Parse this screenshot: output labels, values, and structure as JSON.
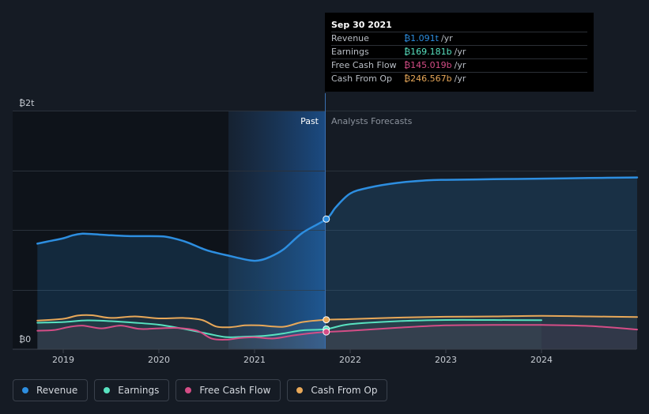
{
  "chart_data": {
    "type": "area",
    "y_axis_labels": {
      "top": "₿2t",
      "bottom": "₿0"
    },
    "ylim": [
      0,
      2.0
    ],
    "x_ticks": [
      "2019",
      "2020",
      "2021",
      "2022",
      "2023",
      "2024"
    ],
    "region_labels": {
      "past": "Past",
      "forecast": "Analysts Forecasts"
    },
    "past_end": 2021.75,
    "series": [
      {
        "name": "Revenue",
        "key": "revenue",
        "color": "#2d8ee0",
        "x": [
          2018.73,
          2018.85,
          2019.0,
          2019.1,
          2019.2,
          2019.3,
          2019.5,
          2019.7,
          2019.9,
          2020.05,
          2020.15,
          2020.3,
          2020.5,
          2020.75,
          2020.95,
          2021.05,
          2021.15,
          2021.3,
          2021.5,
          2021.75,
          2021.85,
          2022.0,
          2022.2,
          2022.5,
          2022.8,
          2023.0,
          2023.5,
          2024.0,
          2024.5,
          2025.0
        ],
        "y": [
          0.885,
          0.905,
          0.93,
          0.955,
          0.968,
          0.965,
          0.955,
          0.948,
          0.948,
          0.945,
          0.93,
          0.895,
          0.83,
          0.78,
          0.745,
          0.745,
          0.77,
          0.835,
          0.975,
          1.091,
          1.19,
          1.305,
          1.355,
          1.395,
          1.415,
          1.42,
          1.425,
          1.43,
          1.435,
          1.44
        ]
      },
      {
        "name": "Earnings",
        "key": "earnings",
        "color": "#58e2c0",
        "x": [
          2018.73,
          2019.0,
          2019.25,
          2019.5,
          2019.75,
          2020.0,
          2020.25,
          2020.5,
          2020.7,
          2020.9,
          2021.1,
          2021.3,
          2021.5,
          2021.75,
          2022.0,
          2022.5,
          2023.0,
          2023.5,
          2024.0
        ],
        "y": [
          0.222,
          0.228,
          0.242,
          0.235,
          0.222,
          0.205,
          0.172,
          0.132,
          0.102,
          0.105,
          0.112,
          0.132,
          0.158,
          0.169,
          0.21,
          0.235,
          0.245,
          0.245,
          0.243
        ]
      },
      {
        "name": "Free Cash Flow",
        "key": "fcf",
        "color": "#d44d86",
        "x": [
          2018.73,
          2018.9,
          2019.05,
          2019.2,
          2019.4,
          2019.6,
          2019.8,
          2020.0,
          2020.2,
          2020.4,
          2020.55,
          2020.7,
          2020.85,
          2021.0,
          2021.2,
          2021.4,
          2021.6,
          2021.75,
          2022.0,
          2022.5,
          2023.0,
          2023.5,
          2024.0,
          2024.5,
          2025.0
        ],
        "y": [
          0.155,
          0.16,
          0.185,
          0.198,
          0.175,
          0.198,
          0.17,
          0.175,
          0.178,
          0.155,
          0.09,
          0.08,
          0.095,
          0.1,
          0.09,
          0.115,
          0.135,
          0.145,
          0.155,
          0.18,
          0.2,
          0.203,
          0.203,
          0.195,
          0.165
        ]
      },
      {
        "name": "Cash From Op",
        "key": "cfo",
        "color": "#e8a859",
        "x": [
          2018.73,
          2019.0,
          2019.15,
          2019.3,
          2019.5,
          2019.75,
          2020.0,
          2020.25,
          2020.45,
          2020.6,
          2020.75,
          2020.9,
          2021.05,
          2021.3,
          2021.5,
          2021.75,
          2022.0,
          2022.5,
          2023.0,
          2023.5,
          2024.0,
          2024.5,
          2025.0
        ],
        "y": [
          0.24,
          0.255,
          0.282,
          0.285,
          0.262,
          0.275,
          0.258,
          0.262,
          0.245,
          0.19,
          0.185,
          0.2,
          0.2,
          0.188,
          0.228,
          0.247,
          0.252,
          0.265,
          0.272,
          0.275,
          0.28,
          0.275,
          0.27
        ]
      }
    ],
    "tooltip": {
      "date": "Sep 30 2021",
      "rows": [
        {
          "label": "Revenue",
          "value": "₿1.091t",
          "unit": "/yr",
          "color": "#2d8ee0"
        },
        {
          "label": "Earnings",
          "value": "₿169.181b",
          "unit": "/yr",
          "color": "#58e2c0"
        },
        {
          "label": "Free Cash Flow",
          "value": "₿145.019b",
          "unit": "/yr",
          "color": "#d44d86"
        },
        {
          "label": "Cash From Op",
          "value": "₿246.567b",
          "unit": "/yr",
          "color": "#e8a859"
        }
      ]
    },
    "legend": [
      {
        "label": "Revenue",
        "color": "#2d8ee0"
      },
      {
        "label": "Earnings",
        "color": "#58e2c0"
      },
      {
        "label": "Free Cash Flow",
        "color": "#d44d86"
      },
      {
        "label": "Cash From Op",
        "color": "#e8a859"
      }
    ]
  }
}
